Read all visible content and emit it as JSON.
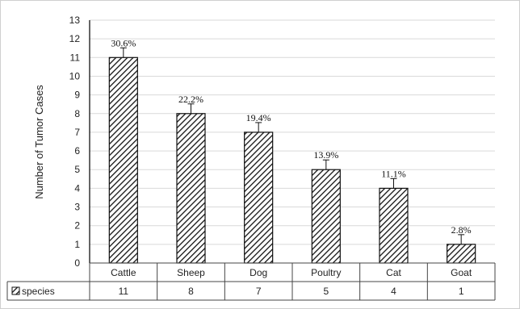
{
  "chart_data": {
    "type": "bar",
    "categories": [
      "Cattle",
      "Sheep",
      "Dog",
      "Poultry",
      "Cat",
      "Goat"
    ],
    "series": [
      {
        "name": "species",
        "values": [
          11,
          8,
          7,
          5,
          4,
          1
        ],
        "data_labels": [
          "30.6%",
          "22.2%",
          "19.4%",
          "13.9%",
          "11.1%",
          "2.8%"
        ]
      }
    ],
    "xlabel": "",
    "ylabel": "Number of Tumor Cases",
    "ylim": [
      0,
      13
    ],
    "yticks": [
      0,
      1,
      2,
      3,
      4,
      5,
      6,
      7,
      8,
      9,
      10,
      11,
      12,
      13
    ],
    "grid": true,
    "error_bars": true,
    "data_table": true,
    "bar_fill": "diagonal-hatch",
    "colors": {
      "bar_stroke": "#111111",
      "grid": "#d9d9d9",
      "axis": "#000000"
    }
  }
}
